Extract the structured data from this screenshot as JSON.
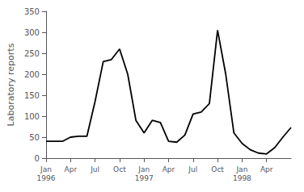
{
  "chart_data": {
    "type": "line",
    "ylabel": "Laboratory reports",
    "categories": [
      "Jan\n1996",
      null,
      null,
      "Apr",
      null,
      null,
      "Jul",
      null,
      null,
      "Oct",
      null,
      null,
      "Jan\n1997",
      null,
      null,
      "Apr",
      null,
      null,
      "Jul",
      null,
      null,
      "Oct",
      null,
      null,
      "Jan\n1998",
      null,
      null,
      "Apr",
      null,
      null,
      null
    ],
    "values": [
      40,
      40,
      40,
      50,
      52,
      52,
      135,
      230,
      235,
      260,
      200,
      90,
      60,
      90,
      85,
      40,
      38,
      55,
      105,
      110,
      130,
      305,
      200,
      60,
      35,
      20,
      12,
      10,
      25,
      50,
      73
    ],
    "color": "#000000",
    "ylim": [
      0,
      350
    ],
    "yticks": [
      0,
      50,
      100,
      150,
      200,
      250,
      300,
      350
    ],
    "grid": false
  }
}
